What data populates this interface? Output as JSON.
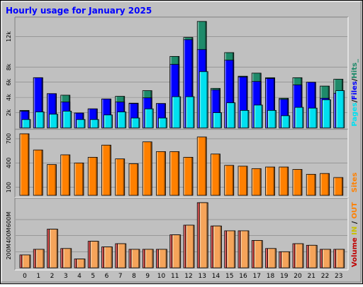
{
  "chart_data": [
    {
      "type": "bar",
      "panel": "hits-files-pages",
      "title": "Hourly usage for January 2025",
      "categories": [
        "0",
        "1",
        "2",
        "3",
        "4",
        "5",
        "6",
        "7",
        "8",
        "9",
        "10",
        "11",
        "12",
        "13",
        "14",
        "15",
        "16",
        "17",
        "18",
        "19",
        "20",
        "21",
        "22",
        "23"
      ],
      "yticks": [
        "2k",
        "4k",
        "6k",
        "8k",
        "12k"
      ],
      "ylim": [
        0,
        14200
      ],
      "legend": [
        "Pages",
        "Files",
        "Hits"
      ],
      "legend_separator": "/",
      "legend_tail": "_",
      "series": [
        {
          "name": "Hits",
          "color": "#1e8a6a",
          "values": [
            2300,
            6600,
            4500,
            4300,
            1950,
            2500,
            3800,
            4150,
            3250,
            4900,
            3200,
            9400,
            11900,
            14000,
            5200,
            9900,
            6800,
            7200,
            6600,
            3900,
            6600,
            6000,
            5500,
            6400
          ]
        },
        {
          "name": "Files",
          "color": "#0000ff",
          "values": [
            2200,
            6600,
            4500,
            3400,
            1950,
            2500,
            3800,
            3400,
            3200,
            3950,
            3200,
            8350,
            11600,
            10300,
            5000,
            8900,
            6700,
            6100,
            6500,
            3750,
            5650,
            6000,
            3900,
            4550
          ]
        },
        {
          "name": "Pages",
          "color": "#00e0f0",
          "values": [
            1100,
            2100,
            1800,
            2200,
            1100,
            1100,
            1700,
            2100,
            1300,
            2500,
            1300,
            4100,
            4100,
            7400,
            2000,
            3300,
            2300,
            3000,
            2300,
            1600,
            2700,
            2600,
            3700,
            4900
          ]
        }
      ]
    },
    {
      "type": "bar",
      "panel": "sites",
      "categories": [
        "0",
        "1",
        "2",
        "3",
        "4",
        "5",
        "6",
        "7",
        "8",
        "9",
        "10",
        "11",
        "12",
        "13",
        "14",
        "15",
        "16",
        "17",
        "18",
        "19",
        "20",
        "21",
        "22",
        "23"
      ],
      "yticks": [
        "100",
        "400",
        "700"
      ],
      "ylim": [
        0,
        780
      ],
      "legend": [
        "Sites"
      ],
      "series": [
        {
          "name": "Sites",
          "color": "#ff8000",
          "values": [
            760,
            560,
            380,
            500,
            400,
            470,
            620,
            450,
            390,
            660,
            540,
            540,
            470,
            720,
            510,
            370,
            360,
            330,
            350,
            350,
            320,
            260,
            270,
            220
          ]
        }
      ]
    },
    {
      "type": "bar",
      "panel": "volume",
      "categories": [
        "0",
        "1",
        "2",
        "3",
        "4",
        "5",
        "6",
        "7",
        "8",
        "9",
        "10",
        "11",
        "12",
        "13",
        "14",
        "15",
        "16",
        "17",
        "18",
        "19",
        "20",
        "21",
        "22",
        "23"
      ],
      "yticks": [
        "200M",
        "400M",
        "600M"
      ],
      "ylim": [
        0,
        830
      ],
      "legend": [
        "Volume",
        "IN",
        "OUT"
      ],
      "legend_separator": "/",
      "series": [
        {
          "name": "Volume",
          "color": "#c00000",
          "values": [
            160,
            230,
            480,
            240,
            110,
            330,
            260,
            300,
            230,
            230,
            230,
            410,
            530,
            810,
            520,
            460,
            460,
            340,
            240,
            200,
            300,
            280,
            230,
            230
          ]
        },
        {
          "name": "OUT",
          "color": "#f5a45a",
          "values": [
            160,
            230,
            480,
            240,
            110,
            330,
            260,
            300,
            230,
            230,
            230,
            410,
            530,
            810,
            520,
            460,
            460,
            340,
            240,
            200,
            300,
            280,
            230,
            230
          ]
        }
      ]
    }
  ],
  "colors": {
    "background": "#c0c0c0",
    "title": "#0000ff",
    "hits": "#1e8a6a",
    "files": "#0000ff",
    "pages": "#00e0f0",
    "sites": "#ff8000",
    "volume": "#c00000",
    "in": "#c8c000",
    "out": "#ff8000",
    "grid": "#808080"
  }
}
